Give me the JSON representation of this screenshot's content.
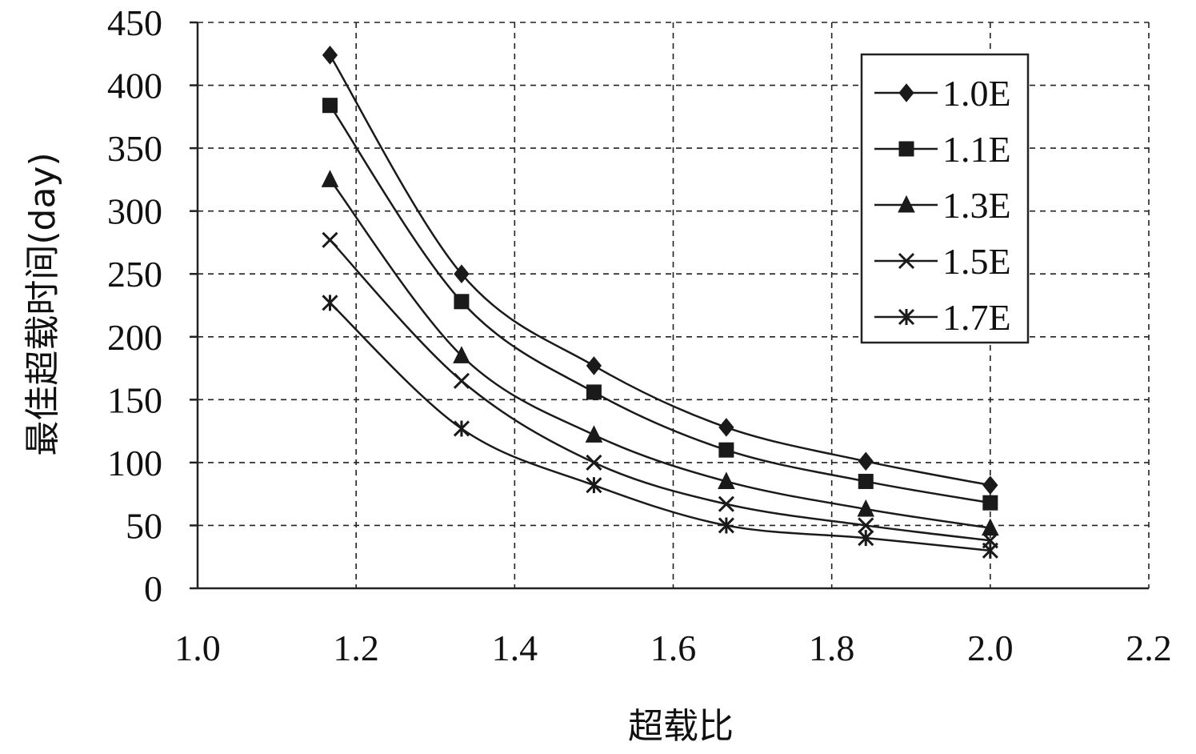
{
  "chart_data": {
    "type": "line",
    "title": "",
    "xlabel": "超载比",
    "ylabel": "最佳超载时间(day)",
    "xlim": [
      1.0,
      2.2
    ],
    "ylim": [
      0,
      450
    ],
    "x_ticks": [
      "1.0",
      "1.2",
      "1.4",
      "1.6",
      "1.8",
      "2.0",
      "2.2"
    ],
    "y_ticks": [
      "0",
      "50",
      "100",
      "150",
      "200",
      "250",
      "300",
      "350",
      "400",
      "450"
    ],
    "grid": true,
    "legend_position": "top-right",
    "x": [
      1.167,
      1.333,
      1.5,
      1.667,
      1.843,
      2.0
    ],
    "series": [
      {
        "name": "1.0E",
        "marker": "diamond",
        "values": [
          424,
          250,
          177,
          128,
          101,
          82
        ]
      },
      {
        "name": "1.1E",
        "marker": "square",
        "values": [
          384,
          228,
          156,
          110,
          85,
          68
        ]
      },
      {
        "name": "1.3E",
        "marker": "triangle",
        "values": [
          325,
          185,
          122,
          85,
          63,
          48
        ]
      },
      {
        "name": "1.5E",
        "marker": "x",
        "values": [
          277,
          165,
          100,
          67,
          50,
          38
        ]
      },
      {
        "name": "1.7E",
        "marker": "star",
        "values": [
          227,
          127,
          82,
          50,
          40,
          30
        ]
      }
    ]
  }
}
